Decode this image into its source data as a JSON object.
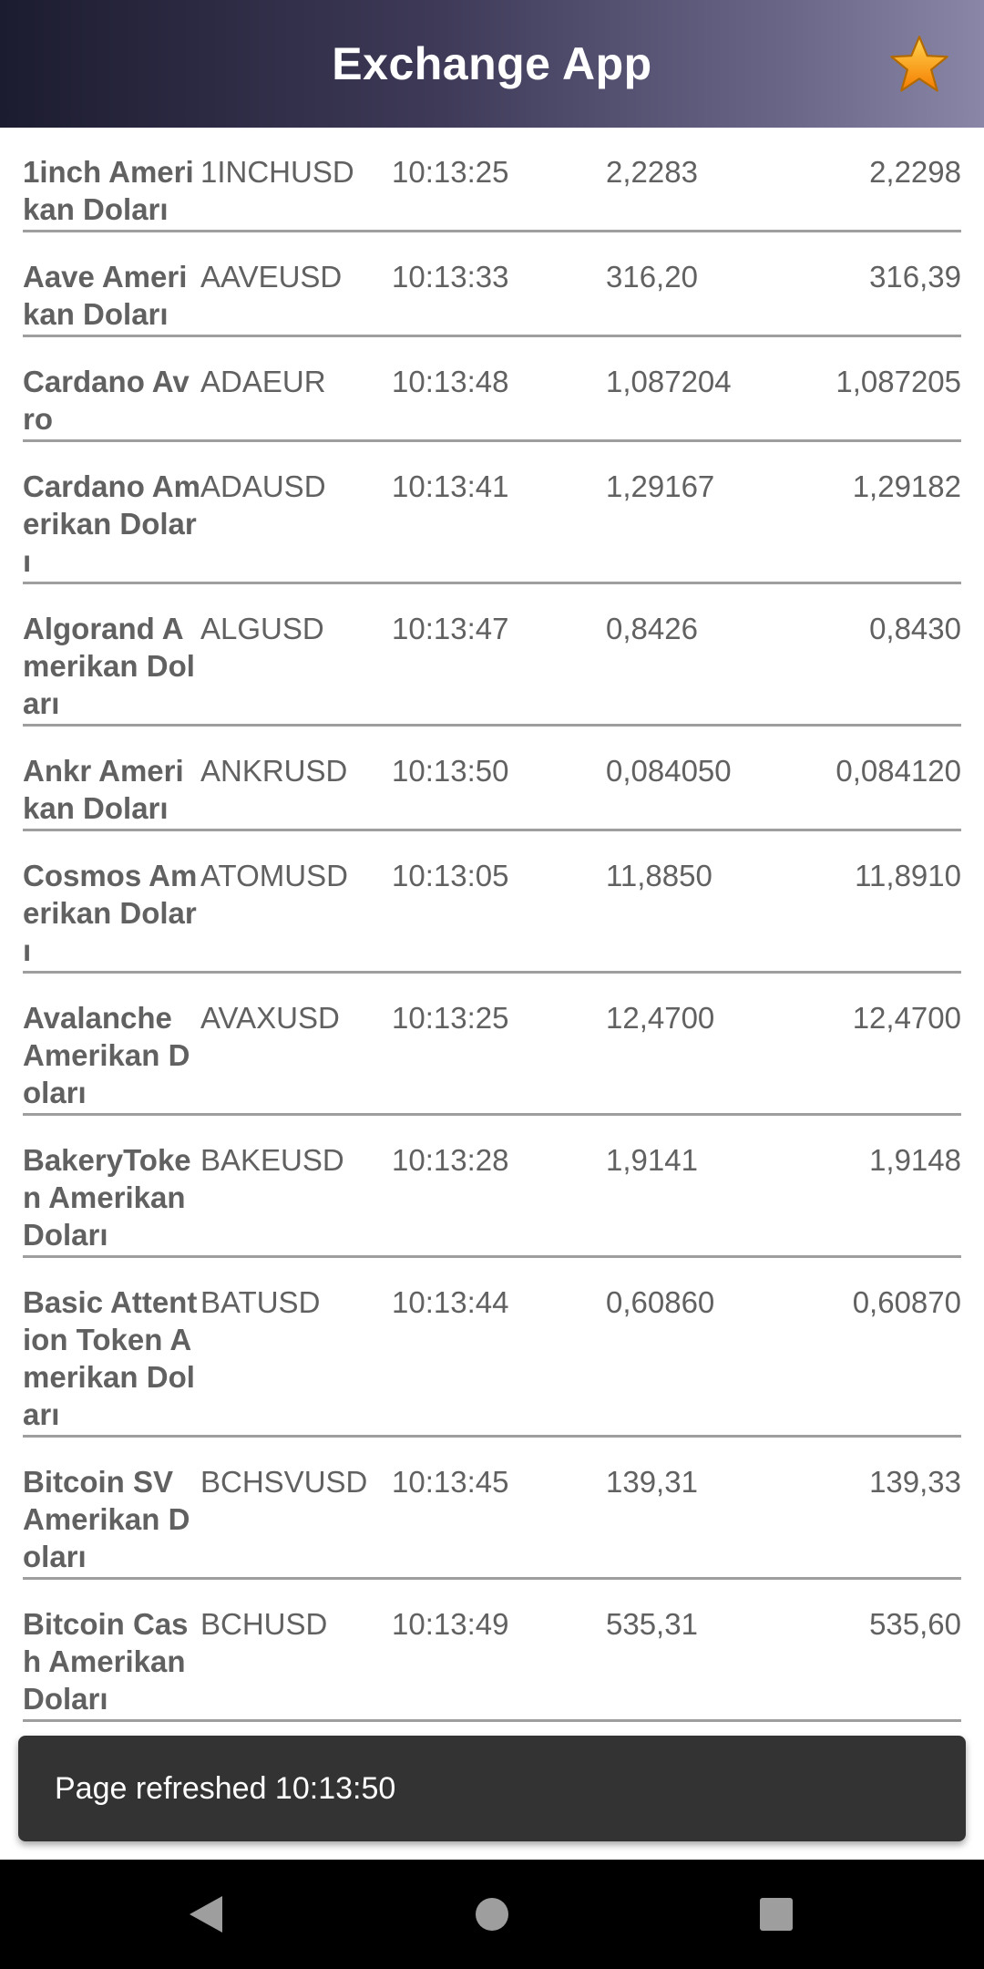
{
  "app_bar": {
    "title": "Exchange App",
    "favorite_icon": "star-icon",
    "accent_colors": {
      "star_fill": "#f9a825",
      "star_stroke": "#c77800"
    }
  },
  "rates": [
    {
      "name": "1inch Amerikan Doları",
      "symbol": "1INCHUSD",
      "time": "10:13:25",
      "buy": "2,2283",
      "sell": "2,2298"
    },
    {
      "name": "Aave Amerikan Doları",
      "symbol": "AAVEUSD",
      "time": "10:13:33",
      "buy": "316,20",
      "sell": "316,39"
    },
    {
      "name": "Cardano Avro",
      "symbol": "ADAEUR",
      "time": "10:13:48",
      "buy": "1,087204",
      "sell": "1,087205"
    },
    {
      "name": "Cardano Amerikan Doları",
      "symbol": "ADAUSD",
      "time": "10:13:41",
      "buy": "1,29167",
      "sell": "1,29182"
    },
    {
      "name": "Algorand Amerikan Doları",
      "symbol": "ALGUSD",
      "time": "10:13:47",
      "buy": "0,8426",
      "sell": "0,8430"
    },
    {
      "name": "Ankr Amerikan Doları",
      "symbol": "ANKRUSD",
      "time": "10:13:50",
      "buy": "0,084050",
      "sell": "0,084120"
    },
    {
      "name": "Cosmos Amerikan Doları",
      "symbol": "ATOMUSD",
      "time": "10:13:05",
      "buy": "11,8850",
      "sell": "11,8910"
    },
    {
      "name": "Avalanche Amerikan Doları",
      "symbol": "AVAXUSD",
      "time": "10:13:25",
      "buy": "12,4700",
      "sell": "12,4700"
    },
    {
      "name": "BakeryToken Amerikan Doları",
      "symbol": "BAKEUSD",
      "time": "10:13:28",
      "buy": "1,9141",
      "sell": "1,9148"
    },
    {
      "name": "Basic Attention Token Amerikan Doları",
      "symbol": "BATUSD",
      "time": "10:13:44",
      "buy": "0,60860",
      "sell": "0,60870"
    },
    {
      "name": "Bitcoin SV Amerikan Doları",
      "symbol": "BCHSVUSD",
      "time": "10:13:45",
      "buy": "139,31",
      "sell": "139,33"
    },
    {
      "name": "Bitcoin Cash Amerikan Doları",
      "symbol": "BCHUSD",
      "time": "10:13:49",
      "buy": "535,31",
      "sell": "535,60"
    }
  ],
  "snackbar": {
    "message": "Page refreshed 10:13:50"
  },
  "nav_bar": {
    "back_icon": "back-triangle-icon",
    "home_icon": "home-circle-icon",
    "recents_icon": "recents-square-icon"
  }
}
